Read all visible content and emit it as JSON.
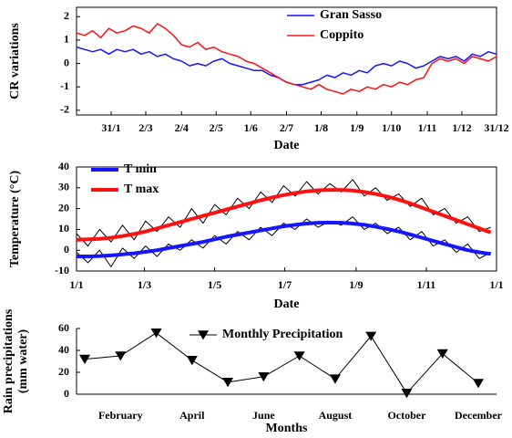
{
  "chart_data": [
    {
      "type": "line",
      "ylabel": "CR variations",
      "xlabel": "Date",
      "x": [
        1,
        8,
        15,
        22,
        29,
        36,
        43,
        50,
        57,
        64,
        71,
        78,
        85,
        92,
        99,
        106,
        113,
        120,
        127,
        134,
        141,
        148,
        155,
        162,
        169,
        176,
        183,
        190,
        197,
        204,
        211,
        218,
        225,
        232,
        239,
        246,
        253,
        260,
        267,
        274,
        281,
        288,
        295,
        302,
        309,
        316,
        323,
        330,
        337,
        344,
        351,
        358,
        365
      ],
      "series": [
        {
          "name": "Gran Sasso",
          "color": "#1515ff",
          "width": 1.5,
          "values": [
            0.7,
            0.6,
            0.5,
            0.6,
            0.4,
            0.6,
            0.5,
            0.6,
            0.4,
            0.5,
            0.3,
            0.4,
            0.2,
            0.1,
            -0.1,
            0.0,
            -0.1,
            0.1,
            0.2,
            0.0,
            -0.1,
            -0.2,
            -0.3,
            -0.3,
            -0.5,
            -0.6,
            -0.8,
            -0.9,
            -0.9,
            -0.8,
            -0.7,
            -0.5,
            -0.6,
            -0.4,
            -0.5,
            -0.3,
            -0.4,
            -0.1,
            0.0,
            -0.1,
            0.1,
            0.0,
            -0.2,
            -0.1,
            0.1,
            0.3,
            0.2,
            0.3,
            0.1,
            0.4,
            0.3,
            0.5,
            0.4
          ]
        },
        {
          "name": "Coppito",
          "color": "#ff1010",
          "width": 1.5,
          "values": [
            1.3,
            1.2,
            1.4,
            1.1,
            1.5,
            1.3,
            1.4,
            1.6,
            1.5,
            1.3,
            1.7,
            1.5,
            1.2,
            0.8,
            0.7,
            0.9,
            0.6,
            0.7,
            0.5,
            0.4,
            0.3,
            0.1,
            0.0,
            -0.2,
            -0.4,
            -0.6,
            -0.8,
            -0.9,
            -1.0,
            -1.1,
            -0.9,
            -1.1,
            -1.2,
            -1.3,
            -1.1,
            -1.2,
            -1.0,
            -1.1,
            -0.9,
            -1.0,
            -0.8,
            -0.9,
            -0.7,
            -0.6,
            0.0,
            0.2,
            0.1,
            0.2,
            0.0,
            0.3,
            0.2,
            0.1,
            0.3
          ]
        }
      ],
      "xlim": [
        1,
        365
      ],
      "xticks": [
        {
          "value": 31,
          "label": "31/1"
        },
        {
          "value": 61,
          "label": "2/3"
        },
        {
          "value": 92,
          "label": "2/4"
        },
        {
          "value": 122,
          "label": "2/5"
        },
        {
          "value": 152,
          "label": "1/6"
        },
        {
          "value": 183,
          "label": "2/7"
        },
        {
          "value": 213,
          "label": "1/8"
        },
        {
          "value": 244,
          "label": "1/9"
        },
        {
          "value": 274,
          "label": "1/10"
        },
        {
          "value": 305,
          "label": "1/11"
        },
        {
          "value": 335,
          "label": "1/12"
        },
        {
          "value": 365,
          "label": "31/12"
        }
      ],
      "ylim": [
        -2.2,
        2.4
      ],
      "yticks": [
        -2,
        -1,
        0,
        1,
        2
      ],
      "legend": "upper right"
    },
    {
      "type": "line",
      "ylabel": "Temperature (°C)",
      "xlabel": "Date",
      "x": [
        1,
        11,
        21,
        31,
        41,
        51,
        61,
        71,
        81,
        91,
        101,
        111,
        121,
        131,
        141,
        151,
        161,
        171,
        181,
        191,
        201,
        211,
        221,
        231,
        241,
        251,
        261,
        271,
        281,
        291,
        301,
        311,
        321,
        331,
        341,
        351,
        361
      ],
      "series": [
        {
          "color": "#000000",
          "width": 1,
          "values": [
            8,
            2,
            10,
            4,
            12,
            5,
            14,
            9,
            16,
            11,
            20,
            13,
            22,
            17,
            25,
            20,
            28,
            23,
            31,
            26,
            33,
            27,
            32,
            28,
            34,
            26,
            30,
            24,
            27,
            21,
            25,
            17,
            20,
            13,
            16,
            9,
            11
          ]
        },
        {
          "color": "#000000",
          "width": 1,
          "values": [
            -1,
            -6,
            0,
            -8,
            1,
            -4,
            2,
            -3,
            3,
            0,
            5,
            1,
            7,
            3,
            9,
            5,
            11,
            7,
            13,
            10,
            15,
            11,
            14,
            12,
            16,
            10,
            13,
            8,
            11,
            5,
            9,
            2,
            5,
            -1,
            3,
            -4,
            -1
          ]
        },
        {
          "name": "T min",
          "color": "#1515ff",
          "width": 4,
          "values": [
            -3,
            -3,
            -2.8,
            -2.5,
            -2,
            -1.5,
            -0.8,
            0,
            1,
            2,
            3,
            4,
            5.2,
            6.5,
            7.5,
            8.5,
            9.5,
            10.5,
            11.5,
            12.2,
            12.8,
            13.2,
            13.3,
            13.2,
            12.8,
            12.2,
            11.3,
            10.2,
            9,
            7.6,
            6,
            4.5,
            3,
            1.5,
            0,
            -1,
            -1.8
          ]
        },
        {
          "name": "T max",
          "color": "#ff1010",
          "width": 4,
          "values": [
            5,
            5.2,
            5.5,
            6,
            6.8,
            7.8,
            9,
            10.5,
            12,
            13.5,
            15,
            16.5,
            18,
            19.5,
            21,
            22.5,
            24,
            25.3,
            26.5,
            27.5,
            28.3,
            28.8,
            29,
            29,
            28.7,
            28,
            27,
            25.8,
            24.3,
            22.5,
            20.5,
            18.5,
            16.5,
            14.5,
            12.5,
            10.5,
            8.5
          ]
        }
      ],
      "xlim": [
        1,
        366
      ],
      "xticks": [
        {
          "value": 1,
          "label": "1/1"
        },
        {
          "value": 60,
          "label": "1/3"
        },
        {
          "value": 121,
          "label": "1/5"
        },
        {
          "value": 182,
          "label": "1/7"
        },
        {
          "value": 244,
          "label": "1/9"
        },
        {
          "value": 305,
          "label": "1/11"
        },
        {
          "value": 366,
          "label": "1/1"
        }
      ],
      "ylim": [
        -10,
        40
      ],
      "yticks": [
        -10,
        0,
        10,
        20,
        30,
        40
      ],
      "legend": "upper left"
    },
    {
      "type": "line",
      "ylabel": [
        "Rain precipitations",
        "(mm water)"
      ],
      "xlabel": "Months",
      "categories": [
        null,
        "February",
        null,
        "April",
        null,
        "June",
        null,
        "August",
        null,
        "October",
        null,
        "December"
      ],
      "series": [
        {
          "name": "Monthly Precipitation",
          "color": "#000000",
          "width": 1,
          "marker": "triangle-down",
          "values": [
            32,
            35,
            56,
            31,
            11,
            16,
            35,
            14,
            53,
            1,
            37,
            10
          ]
        }
      ],
      "ylim": [
        0,
        60
      ],
      "yticks": [
        0,
        20,
        40,
        60
      ],
      "legend": "upper center"
    }
  ]
}
